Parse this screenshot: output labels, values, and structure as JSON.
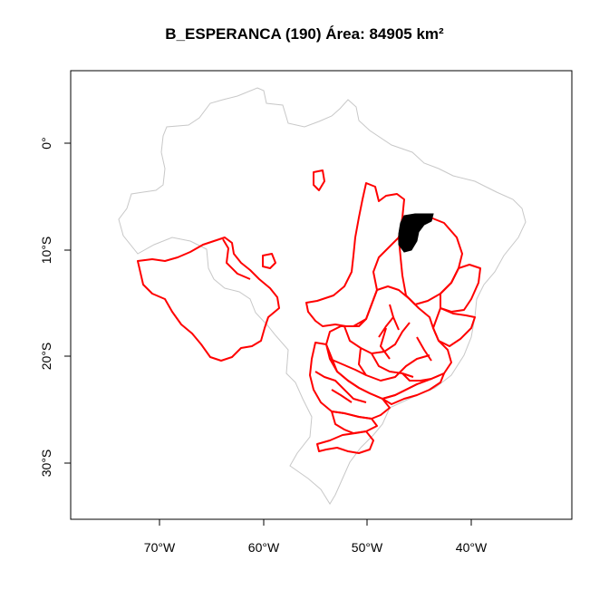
{
  "title": "B_ESPERANCA (190) Área: 84905 km²",
  "x_axis": {
    "ticks": [
      {
        "value": -70,
        "label": "70°W"
      },
      {
        "value": -60,
        "label": "60°W"
      },
      {
        "value": -50,
        "label": "50°W"
      },
      {
        "value": -40,
        "label": "40°W"
      }
    ]
  },
  "y_axis": {
    "ticks": [
      {
        "value": 0,
        "label": "0°"
      },
      {
        "value": -10,
        "label": "10°S"
      },
      {
        "value": -20,
        "label": "20°S"
      },
      {
        "value": -30,
        "label": "30°S"
      }
    ]
  },
  "colors": {
    "country_outline": "#c8c8c8",
    "basin_outline": "#ff0000",
    "highlight_fill": "#000000"
  }
}
